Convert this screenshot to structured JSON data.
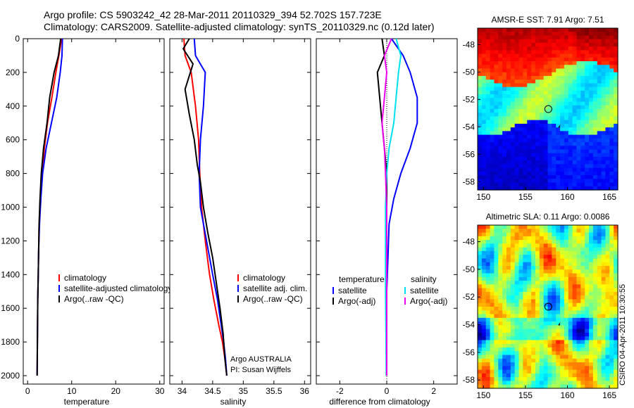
{
  "header": {
    "line1": "Argo profile: CS 5903242_42 28-Mar-2011 20110329_394 52.702S 157.723E",
    "line2": "Climatology: CARS2009. Satellite-adjusted climatology: synTS_20110329.nc (0.12d later)"
  },
  "footer": {
    "argo": "Argo AUSTRALIA",
    "pi": "PI: Susan Wijffels",
    "stamp": "CSIRO 04-Apr-2011 10:30:55"
  },
  "colors": {
    "climatology": "#ff0000",
    "satellite": "#0000ff",
    "argo": "#000000",
    "satellite_diff_sal": "#00e0ee",
    "argo_adj_sal": "#ee00ee",
    "map_marker": "#000000"
  },
  "chart_data": [
    {
      "id": "temperature",
      "type": "line",
      "xlabel": "temperature",
      "ylabel": "",
      "xlim": [
        -1,
        31
      ],
      "ylim": [
        2050,
        0
      ],
      "xticks": [
        0,
        10,
        20,
        30
      ],
      "yticks": [
        0,
        200,
        400,
        600,
        800,
        1000,
        1200,
        1400,
        1600,
        1800,
        2000
      ],
      "legend": [
        "climatology",
        "satellite-adjusted climatology",
        "Argo(..raw -QC)"
      ],
      "series": [
        {
          "name": "climatology",
          "color": "#ff0000",
          "x": [
            7.7,
            7.1,
            6.4,
            5.5,
            4.5,
            3.8,
            3.3,
            2.9,
            2.6,
            2.5,
            2.4,
            2.3,
            2.25,
            2.2,
            2.15
          ],
          "y": [
            0,
            100,
            200,
            350,
            500,
            650,
            800,
            950,
            1100,
            1250,
            1400,
            1550,
            1700,
            1850,
            2000
          ]
        },
        {
          "name": "satellite-adjusted climatology",
          "color": "#0000ff",
          "x": [
            7.9,
            7.8,
            7.4,
            6.6,
            5.4,
            4.2,
            3.4,
            3.0,
            2.7,
            2.5,
            2.4,
            2.3,
            2.25,
            2.2,
            2.15
          ],
          "y": [
            0,
            100,
            200,
            350,
            500,
            650,
            800,
            950,
            1100,
            1250,
            1400,
            1550,
            1700,
            1850,
            2000
          ]
        },
        {
          "name": "Argo(..raw -QC)",
          "color": "#000000",
          "x": [
            7.5,
            7.0,
            6.0,
            5.0,
            4.4,
            3.6,
            3.1,
            2.8,
            2.6,
            2.5,
            2.4,
            2.3,
            2.25,
            2.2,
            2.15
          ],
          "y": [
            0,
            100,
            200,
            350,
            500,
            650,
            800,
            950,
            1100,
            1250,
            1400,
            1550,
            1700,
            1850,
            2000
          ]
        }
      ]
    },
    {
      "id": "salinity",
      "type": "line",
      "xlabel": "salinity",
      "ylabel": "",
      "xlim": [
        33.8,
        36.1
      ],
      "ylim": [
        2050,
        0
      ],
      "xticks": [
        34,
        34.5,
        35,
        35.5,
        36
      ],
      "legend": [
        "climatology",
        "satellite adj. clim.",
        "Argo(..raw -QC)"
      ],
      "series": [
        {
          "name": "climatology",
          "color": "#ff0000",
          "x": [
            34.03,
            34.05,
            34.15,
            34.22,
            34.27,
            34.29,
            34.32,
            34.38,
            34.45,
            34.52,
            34.6,
            34.66,
            34.7,
            34.73
          ],
          "y": [
            0,
            100,
            200,
            400,
            600,
            800,
            1000,
            1200,
            1400,
            1550,
            1700,
            1800,
            1900,
            2000
          ]
        },
        {
          "name": "satellite adj. clim.",
          "color": "#0000ff",
          "x": [
            34.2,
            34.22,
            34.38,
            34.35,
            34.3,
            34.28,
            34.3,
            34.4,
            34.5,
            34.58,
            34.64,
            34.68,
            34.71,
            34.73
          ],
          "y": [
            0,
            100,
            200,
            400,
            600,
            800,
            1000,
            1200,
            1400,
            1550,
            1700,
            1800,
            1900,
            2000
          ]
        },
        {
          "name": "Argo(..raw -QC)",
          "color": "#000000",
          "x": [
            34.12,
            34.02,
            34.18,
            34.05,
            34.12,
            34.2,
            34.25,
            34.3,
            34.35,
            34.42,
            34.5,
            34.56,
            34.62,
            34.67,
            34.7,
            34.73
          ],
          "y": [
            0,
            60,
            150,
            300,
            450,
            600,
            750,
            850,
            1000,
            1150,
            1300,
            1450,
            1600,
            1750,
            1900,
            2000
          ]
        }
      ]
    },
    {
      "id": "difference",
      "type": "line",
      "xlabel": "difference from climatology",
      "ylabel": "",
      "xlim": [
        -3,
        3
      ],
      "ylim": [
        2050,
        0
      ],
      "xticks": [
        -2,
        0,
        2
      ],
      "legend_groups": [
        {
          "heading": "temperature",
          "entries": [
            "satellite",
            "Argo(-adj)"
          ]
        },
        {
          "heading": "salinity",
          "entries": [
            "satellite",
            "Argo(-adj)"
          ]
        }
      ],
      "series": [
        {
          "name": "satellite",
          "group": "temperature",
          "color": "#0000ff",
          "x": [
            0.2,
            0.7,
            1.0,
            1.3,
            1.3,
            1.0,
            0.6,
            0.3,
            0.1,
            0.05,
            0.0,
            0.0,
            0.0,
            0.0
          ],
          "y": [
            0,
            100,
            200,
            350,
            500,
            650,
            800,
            950,
            1100,
            1300,
            1500,
            1700,
            1850,
            2000
          ]
        },
        {
          "name": "Argo(-adj)",
          "group": "temperature",
          "color": "#000000",
          "x": [
            -0.2,
            -0.1,
            -0.4,
            -0.3,
            -0.2,
            -0.1,
            0.0,
            0.0,
            0.0,
            0.0,
            0.0,
            0.0
          ],
          "y": [
            0,
            100,
            200,
            350,
            500,
            650,
            800,
            950,
            1200,
            1500,
            1800,
            2000
          ]
        },
        {
          "name": "satellite",
          "group": "salinity",
          "color": "#00e0ee",
          "x": [
            0.4,
            0.6,
            0.5,
            0.4,
            0.3,
            0.1,
            0.0,
            -0.05,
            -0.05,
            -0.05,
            -0.03,
            -0.02
          ],
          "y": [
            0,
            100,
            200,
            350,
            500,
            650,
            800,
            1000,
            1200,
            1500,
            1800,
            2000
          ]
        },
        {
          "name": "Argo(-adj)",
          "group": "salinity",
          "color": "#ee00ee",
          "x": [
            0.2,
            -0.1,
            0.0,
            -0.1,
            -0.2,
            -0.1,
            -0.05,
            0.0,
            0.0,
            0.0,
            0.0,
            0.0
          ],
          "y": [
            0,
            100,
            200,
            350,
            500,
            650,
            800,
            1000,
            1200,
            1500,
            1800,
            2000
          ]
        }
      ]
    },
    {
      "id": "sst_map",
      "type": "heatmap",
      "title": "AMSR-E SST: 7.91 Argo: 7.51",
      "xlim": [
        149.3,
        166
      ],
      "ylim": [
        -58.6,
        -46.8
      ],
      "xticks": [
        150,
        155,
        160,
        165
      ],
      "yticks": [
        -48,
        -50,
        -52,
        -54,
        -56,
        -58
      ],
      "marker": {
        "lon": 157.723,
        "lat": -52.702
      }
    },
    {
      "id": "sla_map",
      "type": "heatmap",
      "title": "Altimetric SLA: 0.11 Argo: 0.0086",
      "xlim": [
        149.3,
        166
      ],
      "ylim": [
        -58.6,
        -46.8
      ],
      "xticks": [
        150,
        155,
        160,
        165
      ],
      "yticks": [
        -48,
        -50,
        -52,
        -54,
        -56,
        -58
      ],
      "marker": {
        "lon": 157.723,
        "lat": -52.702
      }
    }
  ]
}
